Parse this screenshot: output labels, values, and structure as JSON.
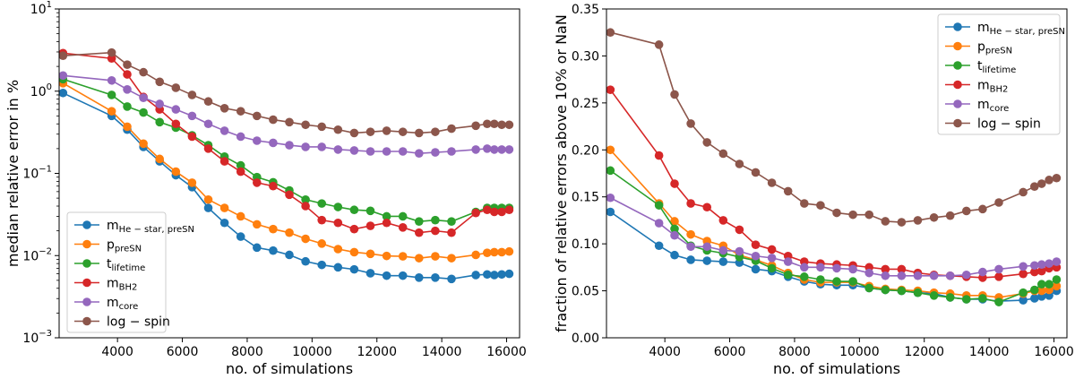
{
  "chart_data": [
    {
      "type": "line",
      "xlabel": "no. of simulations",
      "ylabel": "median relative error in %",
      "yscale": "log",
      "xlim": [
        2200,
        16400
      ],
      "ylim": [
        0.001,
        10
      ],
      "xticks": [
        4000,
        6000,
        8000,
        10000,
        12000,
        14000,
        16000
      ],
      "xtick_labels": [
        "4000",
        "6000",
        "8000",
        "10000",
        "12000",
        "14000",
        "16000"
      ],
      "yticks": [
        0.001,
        0.01,
        0.1,
        1,
        10
      ],
      "ytick_labels": [
        "10",
        "10",
        "10",
        "10",
        "10"
      ],
      "ytick_exponents": [
        "−3",
        "−2",
        "−1",
        "0",
        "1"
      ],
      "legend_position": "lower-left",
      "x": [
        2320,
        3820,
        4300,
        4800,
        5300,
        5800,
        6300,
        6800,
        7300,
        7800,
        8300,
        8800,
        9300,
        9800,
        10300,
        10800,
        11300,
        11800,
        12300,
        12800,
        13300,
        13800,
        14300,
        15050,
        15400,
        15620,
        15850,
        16080
      ],
      "series": [
        {
          "name": "m",
          "sub": "He − star, preSN",
          "color": "#1f77b4",
          "values": [
            0.95,
            0.5,
            0.34,
            0.21,
            0.14,
            0.095,
            0.068,
            0.038,
            0.025,
            0.017,
            0.0125,
            0.0115,
            0.0102,
            0.0085,
            0.0077,
            0.0072,
            0.0068,
            0.0061,
            0.0057,
            0.0057,
            0.0054,
            0.0054,
            0.0052,
            0.0058,
            0.0059,
            0.0058,
            0.0059,
            0.006
          ]
        },
        {
          "name": "p",
          "sub": "preSN",
          "color": "#ff7f0e",
          "values": [
            1.25,
            0.57,
            0.37,
            0.23,
            0.15,
            0.105,
            0.077,
            0.048,
            0.038,
            0.03,
            0.024,
            0.021,
            0.019,
            0.016,
            0.014,
            0.012,
            0.011,
            0.0105,
            0.0099,
            0.0098,
            0.0093,
            0.0098,
            0.0093,
            0.0102,
            0.0108,
            0.011,
            0.011,
            0.0112
          ]
        },
        {
          "name": "t",
          "sub": "lifetime",
          "color": "#2ca02c",
          "values": [
            1.4,
            0.9,
            0.65,
            0.55,
            0.42,
            0.36,
            0.29,
            0.22,
            0.16,
            0.125,
            0.09,
            0.078,
            0.062,
            0.048,
            0.043,
            0.039,
            0.036,
            0.035,
            0.03,
            0.03,
            0.026,
            0.027,
            0.026,
            0.034,
            0.038,
            0.038,
            0.038,
            0.038
          ]
        },
        {
          "name": "m",
          "sub": "BH2",
          "color": "#d62728",
          "values": [
            2.9,
            2.5,
            1.6,
            0.85,
            0.6,
            0.4,
            0.28,
            0.2,
            0.14,
            0.105,
            0.077,
            0.07,
            0.055,
            0.04,
            0.027,
            0.025,
            0.021,
            0.023,
            0.025,
            0.022,
            0.019,
            0.02,
            0.019,
            0.033,
            0.036,
            0.034,
            0.034,
            0.036
          ]
        },
        {
          "name": "m",
          "sub": "core",
          "color": "#9467bd",
          "values": [
            1.55,
            1.35,
            1.05,
            0.83,
            0.7,
            0.6,
            0.5,
            0.4,
            0.33,
            0.28,
            0.25,
            0.235,
            0.22,
            0.21,
            0.21,
            0.195,
            0.19,
            0.185,
            0.185,
            0.185,
            0.175,
            0.18,
            0.185,
            0.195,
            0.2,
            0.195,
            0.195,
            0.195
          ]
        },
        {
          "name": "log − spin",
          "sub": "",
          "color": "#8c564b",
          "values": [
            2.7,
            2.95,
            2.1,
            1.7,
            1.3,
            1.1,
            0.9,
            0.75,
            0.62,
            0.57,
            0.5,
            0.45,
            0.42,
            0.39,
            0.37,
            0.34,
            0.31,
            0.32,
            0.33,
            0.32,
            0.31,
            0.32,
            0.35,
            0.38,
            0.4,
            0.4,
            0.39,
            0.39
          ]
        }
      ]
    },
    {
      "type": "line",
      "xlabel": "no. of simulations",
      "ylabel": "fraction of relative errors above 10% or NaN",
      "yscale": "linear",
      "xlim": [
        2200,
        16400
      ],
      "ylim": [
        0,
        0.35
      ],
      "xticks": [
        4000,
        6000,
        8000,
        10000,
        12000,
        14000,
        16000
      ],
      "xtick_labels": [
        "4000",
        "6000",
        "8000",
        "10000",
        "12000",
        "14000",
        "16000"
      ],
      "yticks": [
        0,
        0.05,
        0.1,
        0.15,
        0.2,
        0.25,
        0.3,
        0.35
      ],
      "ytick_labels": [
        "0.00",
        "0.05",
        "0.10",
        "0.15",
        "0.20",
        "0.25",
        "0.30",
        "0.35"
      ],
      "legend_position": "top-right",
      "x": [
        2320,
        3820,
        4300,
        4800,
        5300,
        5800,
        6300,
        6800,
        7300,
        7800,
        8300,
        8800,
        9300,
        9800,
        10300,
        10800,
        11300,
        11800,
        12300,
        12800,
        13300,
        13800,
        14300,
        15050,
        15400,
        15620,
        15850,
        16080
      ],
      "series": [
        {
          "name": "m",
          "sub": "He − star, preSN",
          "color": "#1f77b4",
          "values": [
            0.134,
            0.098,
            0.088,
            0.083,
            0.082,
            0.081,
            0.08,
            0.073,
            0.071,
            0.065,
            0.06,
            0.057,
            0.056,
            0.056,
            0.053,
            0.051,
            0.05,
            0.048,
            0.047,
            0.043,
            0.041,
            0.041,
            0.039,
            0.04,
            0.042,
            0.044,
            0.045,
            0.05
          ]
        },
        {
          "name": "p",
          "sub": "preSN",
          "color": "#ff7f0e",
          "values": [
            0.2,
            0.143,
            0.124,
            0.11,
            0.103,
            0.098,
            0.088,
            0.083,
            0.077,
            0.069,
            0.062,
            0.059,
            0.059,
            0.059,
            0.055,
            0.052,
            0.051,
            0.05,
            0.048,
            0.047,
            0.045,
            0.045,
            0.043,
            0.047,
            0.05,
            0.05,
            0.051,
            0.055
          ]
        },
        {
          "name": "t",
          "sub": "lifetime",
          "color": "#2ca02c",
          "values": [
            0.178,
            0.141,
            0.116,
            0.098,
            0.093,
            0.09,
            0.086,
            0.082,
            0.074,
            0.067,
            0.065,
            0.062,
            0.06,
            0.06,
            0.053,
            0.051,
            0.05,
            0.048,
            0.045,
            0.043,
            0.041,
            0.042,
            0.038,
            0.048,
            0.051,
            0.057,
            0.057,
            0.062
          ]
        },
        {
          "name": "m",
          "sub": "BH2",
          "color": "#d62728",
          "values": [
            0.264,
            0.194,
            0.164,
            0.143,
            0.139,
            0.125,
            0.115,
            0.099,
            0.094,
            0.087,
            0.081,
            0.079,
            0.078,
            0.077,
            0.075,
            0.073,
            0.073,
            0.069,
            0.067,
            0.066,
            0.065,
            0.064,
            0.065,
            0.068,
            0.07,
            0.071,
            0.074,
            0.075
          ]
        },
        {
          "name": "m",
          "sub": "core",
          "color": "#9467bd",
          "values": [
            0.149,
            0.122,
            0.109,
            0.097,
            0.097,
            0.093,
            0.092,
            0.087,
            0.085,
            0.081,
            0.075,
            0.075,
            0.074,
            0.073,
            0.069,
            0.066,
            0.066,
            0.066,
            0.066,
            0.066,
            0.067,
            0.07,
            0.073,
            0.076,
            0.077,
            0.078,
            0.079,
            0.081
          ]
        },
        {
          "name": "log − spin",
          "sub": "",
          "color": "#8c564b",
          "values": [
            0.325,
            0.312,
            0.259,
            0.228,
            0.208,
            0.196,
            0.185,
            0.176,
            0.165,
            0.156,
            0.143,
            0.141,
            0.133,
            0.131,
            0.131,
            0.124,
            0.123,
            0.125,
            0.128,
            0.13,
            0.135,
            0.137,
            0.144,
            0.155,
            0.161,
            0.164,
            0.168,
            0.17
          ]
        }
      ]
    }
  ]
}
